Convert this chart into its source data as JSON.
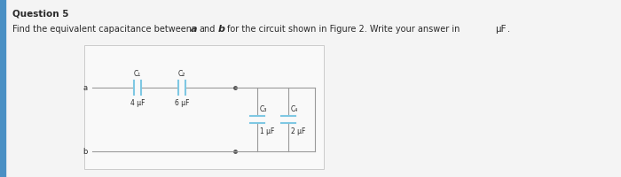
{
  "title": "Question 5",
  "cap_labels": [
    "C₁",
    "C₂",
    "C₃",
    "C₄"
  ],
  "cap_values": [
    "4 μF",
    "6 μF",
    "1 μF",
    "2 μF"
  ],
  "line_color": "#7ec8e3",
  "wire_color": "#9a9a9a",
  "text_color": "#2a2a2a",
  "bg_color": "#f4f4f4",
  "box_bg": "#f9f9f9",
  "box_edge": "#bbbbbb",
  "left_bar_color": "#4a90c4",
  "figsize": [
    7.0,
    2.01
  ],
  "dpi": 100
}
